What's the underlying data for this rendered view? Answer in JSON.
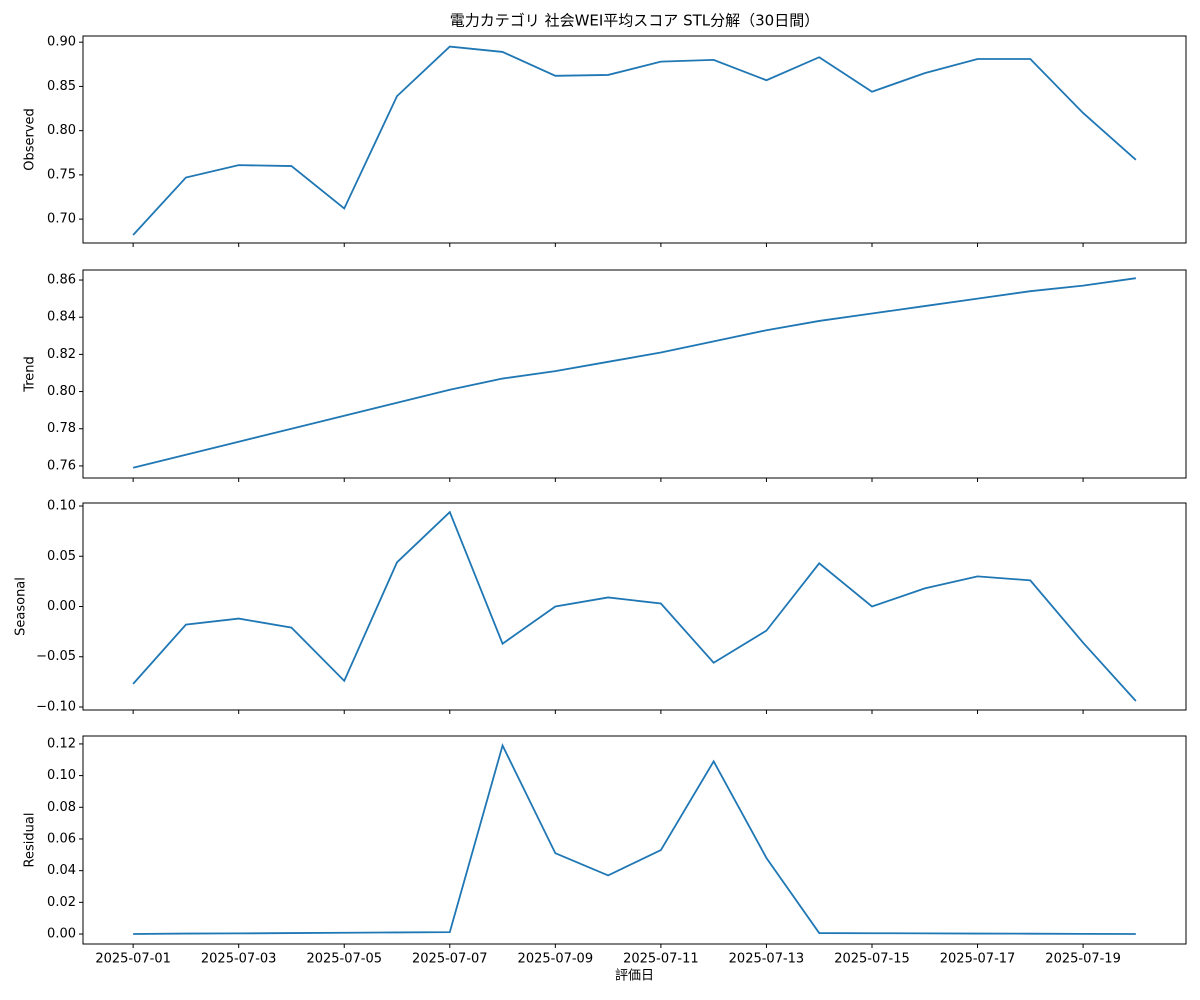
{
  "chart_data": [
    {
      "type": "line",
      "title": "電力カテゴリ 社会WEI平均スコア STL分解（30日間）",
      "ylabel": "Observed",
      "color": "#1f77b4",
      "x": [
        "2025-07-01",
        "2025-07-02",
        "2025-07-03",
        "2025-07-04",
        "2025-07-05",
        "2025-07-06",
        "2025-07-07",
        "2025-07-08",
        "2025-07-09",
        "2025-07-10",
        "2025-07-11",
        "2025-07-12",
        "2025-07-13",
        "2025-07-14",
        "2025-07-15",
        "2025-07-16",
        "2025-07-17",
        "2025-07-18",
        "2025-07-19",
        "2025-07-20"
      ],
      "values": [
        0.682,
        0.747,
        0.761,
        0.76,
        0.712,
        0.839,
        0.895,
        0.889,
        0.862,
        0.863,
        0.878,
        0.88,
        0.857,
        0.883,
        0.844,
        0.865,
        0.881,
        0.881,
        0.82,
        0.767
      ],
      "ylim": [
        0.673,
        0.907
      ],
      "yticks": [
        {
          "value": 0.7,
          "label": "0.70"
        },
        {
          "value": 0.75,
          "label": "0.75"
        },
        {
          "value": 0.8,
          "label": "0.80"
        },
        {
          "value": 0.85,
          "label": "0.85"
        },
        {
          "value": 0.9,
          "label": "0.90"
        }
      ]
    },
    {
      "type": "line",
      "ylabel": "Trend",
      "color": "#1f77b4",
      "x": [
        "2025-07-01",
        "2025-07-02",
        "2025-07-03",
        "2025-07-04",
        "2025-07-05",
        "2025-07-06",
        "2025-07-07",
        "2025-07-08",
        "2025-07-09",
        "2025-07-10",
        "2025-07-11",
        "2025-07-12",
        "2025-07-13",
        "2025-07-14",
        "2025-07-15",
        "2025-07-16",
        "2025-07-17",
        "2025-07-18",
        "2025-07-19",
        "2025-07-20"
      ],
      "values": [
        0.759,
        0.766,
        0.773,
        0.78,
        0.787,
        0.794,
        0.801,
        0.807,
        0.811,
        0.816,
        0.821,
        0.827,
        0.833,
        0.838,
        0.842,
        0.846,
        0.85,
        0.854,
        0.857,
        0.861
      ],
      "ylim": [
        0.7535,
        0.8654
      ],
      "yticks": [
        {
          "value": 0.76,
          "label": "0.76"
        },
        {
          "value": 0.78,
          "label": "0.78"
        },
        {
          "value": 0.8,
          "label": "0.80"
        },
        {
          "value": 0.82,
          "label": "0.82"
        },
        {
          "value": 0.84,
          "label": "0.84"
        },
        {
          "value": 0.86,
          "label": "0.86"
        }
      ]
    },
    {
      "type": "line",
      "ylabel": "Seasonal",
      "color": "#1f77b4",
      "x": [
        "2025-07-01",
        "2025-07-02",
        "2025-07-03",
        "2025-07-04",
        "2025-07-05",
        "2025-07-06",
        "2025-07-07",
        "2025-07-08",
        "2025-07-09",
        "2025-07-10",
        "2025-07-11",
        "2025-07-12",
        "2025-07-13",
        "2025-07-14",
        "2025-07-15",
        "2025-07-16",
        "2025-07-17",
        "2025-07-18",
        "2025-07-19",
        "2025-07-20"
      ],
      "values": [
        -0.077,
        -0.018,
        -0.012,
        -0.021,
        -0.074,
        0.044,
        0.094,
        -0.037,
        0.0,
        0.009,
        0.003,
        -0.056,
        -0.024,
        0.043,
        0.0,
        0.018,
        0.03,
        0.026,
        -0.036,
        -0.094
      ],
      "ylim": [
        -0.103,
        0.103
      ],
      "yticks": [
        {
          "value": -0.1,
          "label": "−0.10"
        },
        {
          "value": -0.05,
          "label": "−0.05"
        },
        {
          "value": 0,
          "label": "0.00"
        },
        {
          "value": 0.05,
          "label": "0.05"
        },
        {
          "value": 0.1,
          "label": "0.10"
        }
      ]
    },
    {
      "type": "line",
      "ylabel": "Residual",
      "xlabel": "評価日",
      "color": "#1f77b4",
      "x": [
        "2025-07-01",
        "2025-07-02",
        "2025-07-03",
        "2025-07-04",
        "2025-07-05",
        "2025-07-06",
        "2025-07-07",
        "2025-07-08",
        "2025-07-09",
        "2025-07-10",
        "2025-07-11",
        "2025-07-12",
        "2025-07-13",
        "2025-07-14",
        "2025-07-15",
        "2025-07-16",
        "2025-07-17",
        "2025-07-18",
        "2025-07-19",
        "2025-07-20"
      ],
      "values": [
        0.0,
        0.0003,
        0.0004,
        0.0006,
        0.0008,
        0.001,
        0.0012,
        0.119,
        0.051,
        0.037,
        0.053,
        0.109,
        0.048,
        0.0006,
        0.0005,
        0.0004,
        0.0003,
        0.0002,
        0.0001,
        0.0
      ],
      "ylim": [
        -0.0063,
        0.125
      ],
      "yticks": [
        {
          "value": 0,
          "label": "0.00"
        },
        {
          "value": 0.02,
          "label": "0.02"
        },
        {
          "value": 0.04,
          "label": "0.04"
        },
        {
          "value": 0.06,
          "label": "0.06"
        },
        {
          "value": 0.08,
          "label": "0.08"
        },
        {
          "value": 0.1,
          "label": "0.10"
        },
        {
          "value": 0.12,
          "label": "0.12"
        }
      ],
      "xticks": [
        "2025-07-01",
        "2025-07-03",
        "2025-07-05",
        "2025-07-07",
        "2025-07-09",
        "2025-07-11",
        "2025-07-13",
        "2025-07-15",
        "2025-07-17",
        "2025-07-19"
      ]
    }
  ]
}
